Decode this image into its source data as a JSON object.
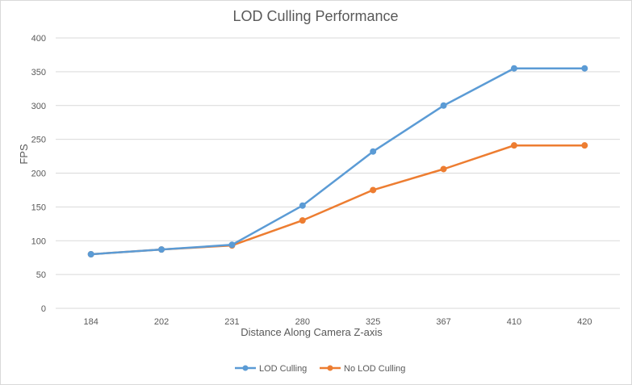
{
  "chart_data": {
    "type": "line",
    "title": "LOD Culling Performance",
    "xlabel": "Distance Along Camera Z-axis",
    "ylabel": "FPS",
    "categories": [
      "184",
      "202",
      "231",
      "280",
      "325",
      "367",
      "410",
      "420"
    ],
    "ylim": [
      0,
      400
    ],
    "yticks": [
      0,
      50,
      100,
      150,
      200,
      250,
      300,
      350,
      400
    ],
    "grid": true,
    "legend_position": "bottom",
    "series": [
      {
        "name": "LOD Culling",
        "color": "#5b9bd5",
        "values": [
          80,
          87,
          94,
          152,
          232,
          300,
          355,
          355
        ]
      },
      {
        "name": "No LOD Culling",
        "color": "#ed7d31",
        "values": [
          80,
          87,
          93,
          130,
          175,
          206,
          241,
          241
        ]
      }
    ]
  }
}
